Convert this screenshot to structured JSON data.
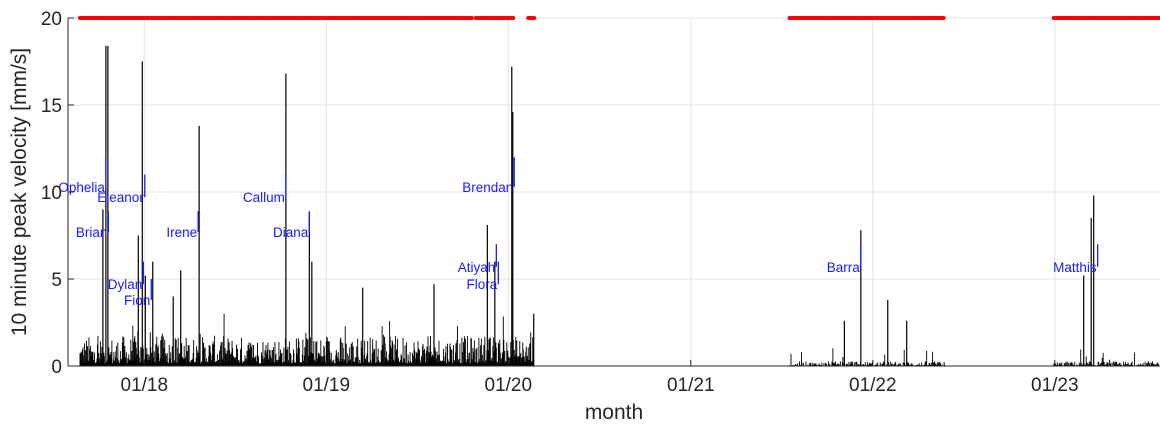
{
  "chart_data": {
    "type": "bar",
    "title": "",
    "xlabel": "month",
    "ylabel": "10 minute peak velocity [mm/s]",
    "ylim": [
      0,
      20
    ],
    "xlim": [
      "2017-08-01",
      "2023-07-31"
    ],
    "yticks": [
      "0",
      "5",
      "10",
      "15",
      "20"
    ],
    "xticks": [
      {
        "date": "2018-01-01",
        "label": "01/18"
      },
      {
        "date": "2019-01-01",
        "label": "01/19"
      },
      {
        "date": "2020-01-01",
        "label": "01/20"
      },
      {
        "date": "2021-01-01",
        "label": "01/21"
      },
      {
        "date": "2022-01-01",
        "label": "01/22"
      },
      {
        "date": "2023-01-01",
        "label": "01/23"
      }
    ],
    "grid": true,
    "series_color": "#000000",
    "availability_color": "#ff0000",
    "availability_level": 20,
    "data_available_periods": [
      [
        "2017-08-25",
        "2019-10-20"
      ],
      [
        "2019-10-28",
        "2020-01-12"
      ],
      [
        "2020-02-10",
        "2020-02-22"
      ],
      [
        "2021-07-18",
        "2022-05-25"
      ],
      [
        "2022-12-30",
        "2023-07-31"
      ]
    ],
    "recorded_periods": [
      [
        "2017-08-25",
        "2020-02-20"
      ],
      [
        "2021-07-18",
        "2022-05-25"
      ],
      [
        "2022-12-30",
        "2023-07-31"
      ]
    ],
    "peaks": [
      {
        "date": "2017-10-16",
        "value": 18.4
      },
      {
        "date": "2017-10-20",
        "value": 18.4
      },
      {
        "date": "2017-10-10",
        "value": 9.0
      },
      {
        "date": "2017-12-28",
        "value": 17.5
      },
      {
        "date": "2017-12-20",
        "value": 7.5
      },
      {
        "date": "2018-01-03",
        "value": 5.2
      },
      {
        "date": "2018-01-18",
        "value": 6.0
      },
      {
        "date": "2018-02-28",
        "value": 4.0
      },
      {
        "date": "2018-03-15",
        "value": 5.5
      },
      {
        "date": "2018-04-21",
        "value": 13.8
      },
      {
        "date": "2018-10-12",
        "value": 16.8
      },
      {
        "date": "2018-11-28",
        "value": 8.8
      },
      {
        "date": "2018-12-03",
        "value": 6.0
      },
      {
        "date": "2019-03-15",
        "value": 4.5
      },
      {
        "date": "2019-08-05",
        "value": 4.7
      },
      {
        "date": "2019-11-20",
        "value": 8.1
      },
      {
        "date": "2019-12-05",
        "value": 6.0
      },
      {
        "date": "2020-01-08",
        "value": 17.2
      },
      {
        "date": "2020-01-10",
        "value": 14.6
      },
      {
        "date": "2020-02-21",
        "value": 3.0
      },
      {
        "date": "2021-11-05",
        "value": 2.6
      },
      {
        "date": "2021-12-08",
        "value": 7.8
      },
      {
        "date": "2022-01-31",
        "value": 3.8
      },
      {
        "date": "2022-03-10",
        "value": 2.6
      },
      {
        "date": "2023-02-28",
        "value": 5.2
      },
      {
        "date": "2023-03-20",
        "value": 9.8
      },
      {
        "date": "2023-03-15",
        "value": 8.5
      }
    ],
    "annotations": [
      {
        "label": "Ophelia",
        "date": "2017-10-16",
        "y_low": 10.3,
        "y_high": 12.0
      },
      {
        "label": "Brian",
        "date": "2017-10-21",
        "y_low": 7.7,
        "y_high": 8.9
      },
      {
        "label": "Eleanor",
        "date": "2018-01-02",
        "y_low": 9.7,
        "y_high": 11.0
      },
      {
        "label": "Dylan",
        "date": "2017-12-30",
        "y_low": 4.7,
        "y_high": 6.0
      },
      {
        "label": "Fion",
        "date": "2018-01-15",
        "y_low": 3.8,
        "y_high": 5.0
      },
      {
        "label": "Irene",
        "date": "2018-04-19",
        "y_low": 7.7,
        "y_high": 8.9
      },
      {
        "label": "Callum",
        "date": "2018-10-12",
        "y_low": 9.7,
        "y_high": 11.0
      },
      {
        "label": "Diana",
        "date": "2018-11-28",
        "y_low": 7.7,
        "y_high": 8.9
      },
      {
        "label": "Atiyah",
        "date": "2019-12-08",
        "y_low": 5.7,
        "y_high": 7.0
      },
      {
        "label": "Flora",
        "date": "2019-12-12",
        "y_low": 4.7,
        "y_high": 6.0
      },
      {
        "label": "Brendan",
        "date": "2020-01-13",
        "y_low": 10.3,
        "y_high": 12.0
      },
      {
        "label": "Barra",
        "date": "2021-12-08",
        "y_low": 5.7,
        "y_high": 7.0
      },
      {
        "label": "Matthis",
        "date": "2023-03-28",
        "y_low": 5.7,
        "y_high": 7.0
      }
    ]
  }
}
